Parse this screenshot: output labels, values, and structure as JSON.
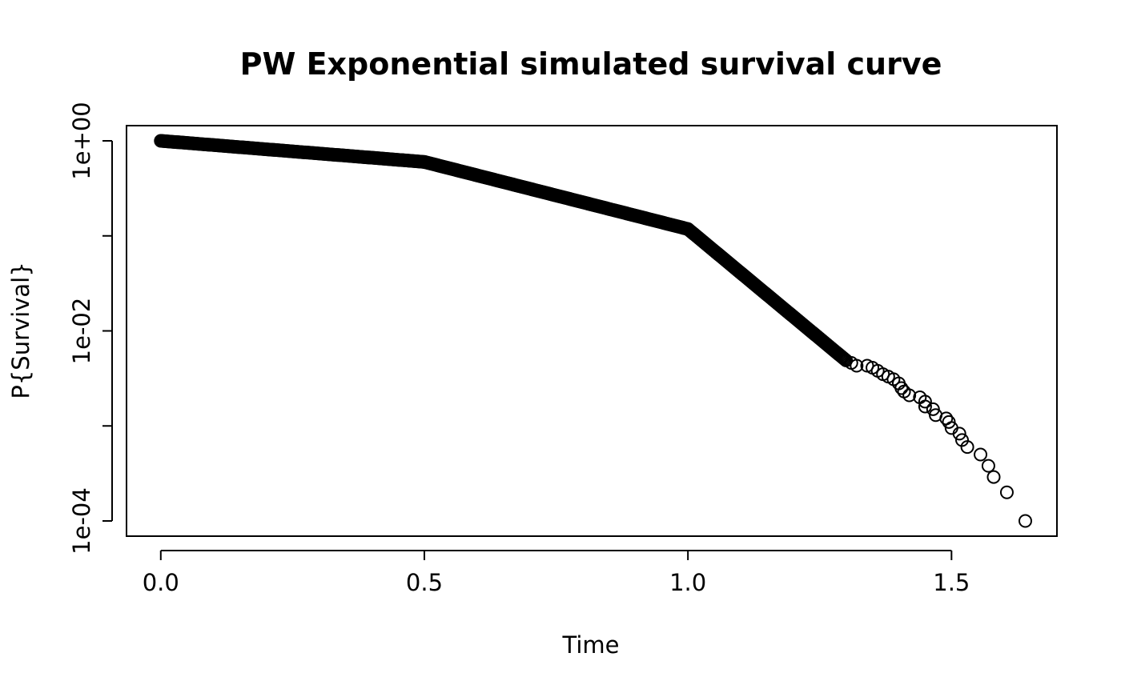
{
  "chart_data": {
    "type": "scatter",
    "title": "PW Exponential simulated survival curve",
    "xlabel": "Time",
    "ylabel": "P{Survival}",
    "xlim": [
      -0.065,
      1.7
    ],
    "ylim_log10": [
      -4.16,
      0.16
    ],
    "y_scale": "log",
    "x_ticks": [
      {
        "value": 0.0,
        "label": "0.0"
      },
      {
        "value": 0.5,
        "label": "0.5"
      },
      {
        "value": 1.0,
        "label": "1.0"
      },
      {
        "value": 1.5,
        "label": "1.5"
      }
    ],
    "y_ticks": [
      {
        "value": 1,
        "label": "1e+00"
      },
      {
        "value": 0.1,
        "label": ""
      },
      {
        "value": 0.01,
        "label": "1e-02"
      },
      {
        "value": 0.001,
        "label": ""
      },
      {
        "value": 0.0001,
        "label": "1e-04"
      }
    ],
    "curve_segments": [
      {
        "from": [
          0.0,
          1.0
        ],
        "to": [
          0.5,
          0.6
        ]
      },
      {
        "from": [
          0.5,
          0.6
        ],
        "to": [
          1.0,
          0.118
        ]
      },
      {
        "from": [
          1.0,
          0.118
        ],
        "to": [
          1.3,
          0.00489
        ]
      }
    ],
    "sparse_points": [
      [
        1.31,
        0.0046
      ],
      [
        1.32,
        0.0043
      ],
      [
        1.34,
        0.0043
      ],
      [
        1.35,
        0.0041
      ],
      [
        1.36,
        0.0038
      ],
      [
        1.37,
        0.0035
      ],
      [
        1.38,
        0.0033
      ],
      [
        1.39,
        0.0031
      ],
      [
        1.4,
        0.0028
      ],
      [
        1.405,
        0.0025
      ],
      [
        1.41,
        0.0023
      ],
      [
        1.42,
        0.0021
      ],
      [
        1.44,
        0.002
      ],
      [
        1.45,
        0.0018
      ],
      [
        1.45,
        0.0016
      ],
      [
        1.465,
        0.0015
      ],
      [
        1.47,
        0.0013
      ],
      [
        1.49,
        0.0012
      ],
      [
        1.495,
        0.0011
      ],
      [
        1.5,
        0.00095
      ],
      [
        1.515,
        0.00083
      ],
      [
        1.52,
        0.00071
      ],
      [
        1.53,
        0.0006
      ],
      [
        1.555,
        0.0005
      ],
      [
        1.57,
        0.00038
      ],
      [
        1.58,
        0.00029
      ],
      [
        1.605,
        0.0002
      ],
      [
        1.64,
        0.0001
      ]
    ]
  }
}
